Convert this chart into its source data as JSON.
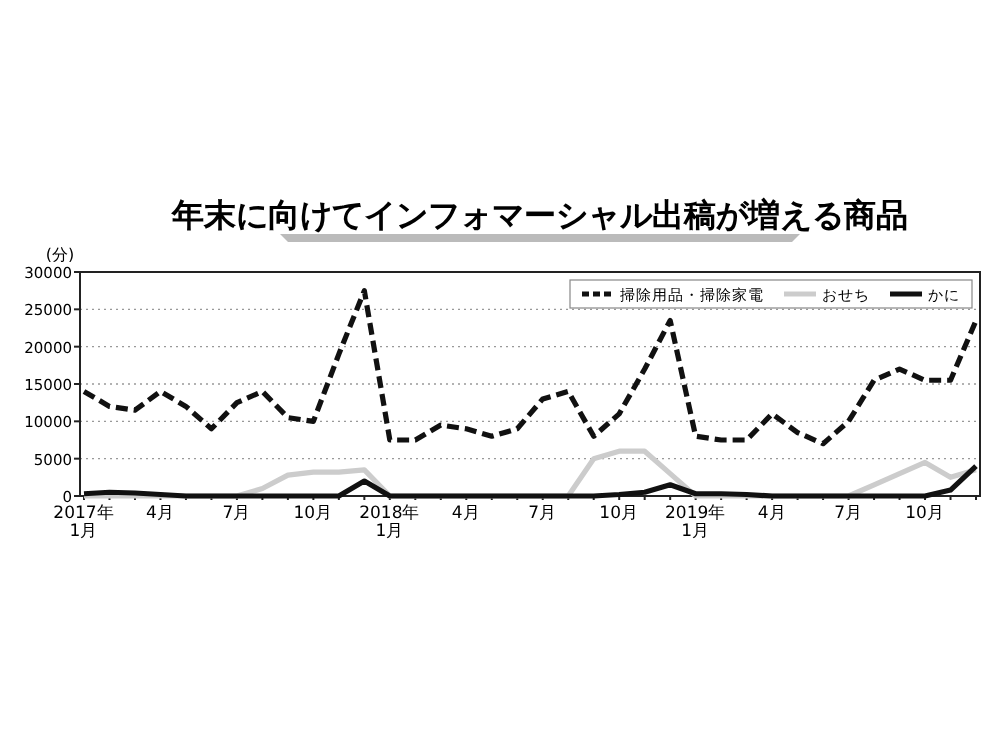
{
  "chart_data": {
    "type": "line",
    "title": "年末に向けてインフォマーシャル出稿が増える商品",
    "ylabel": "(分)",
    "categories": [
      "2017年\n1月",
      null,
      null,
      "4月",
      null,
      null,
      "7月",
      null,
      null,
      "10月",
      null,
      null,
      "2018年\n1月",
      null,
      null,
      "4月",
      null,
      null,
      "7月",
      null,
      null,
      "10月",
      null,
      null,
      "2019年\n1月",
      null,
      null,
      "4月",
      null,
      null,
      "7月",
      null,
      null,
      "10月",
      null,
      null
    ],
    "series": [
      {
        "name": "掃除用品・掃除家電",
        "color": "#111111",
        "line_style": "dashed",
        "values": [
          14000,
          12000,
          11500,
          14000,
          12000,
          9000,
          12500,
          14000,
          10500,
          10000,
          19000,
          27500,
          7500,
          7500,
          9500,
          9000,
          8000,
          9000,
          13000,
          14000,
          8000,
          11000,
          17000,
          23500,
          8000,
          7500,
          7500,
          11000,
          8500,
          7000,
          10000,
          15500,
          17000,
          15500,
          15500,
          23500
        ]
      },
      {
        "name": "おせち",
        "color": "#cccccc",
        "line_style": "solid",
        "values": [
          0,
          0,
          0,
          0,
          0,
          0,
          0,
          1000,
          2800,
          3200,
          3200,
          3500,
          0,
          0,
          0,
          0,
          0,
          0,
          0,
          0,
          5000,
          6000,
          6000,
          3000,
          0,
          0,
          0,
          0,
          0,
          0,
          0,
          1500,
          3000,
          4500,
          2500,
          3500
        ]
      },
      {
        "name": "かに",
        "color": "#111111",
        "line_style": "solid",
        "values": [
          300,
          500,
          400,
          200,
          0,
          0,
          0,
          0,
          0,
          0,
          0,
          2000,
          0,
          0,
          0,
          0,
          0,
          0,
          0,
          0,
          0,
          200,
          500,
          1500,
          300,
          300,
          200,
          0,
          0,
          0,
          0,
          0,
          0,
          0,
          800,
          4000
        ]
      }
    ],
    "ylim": [
      0,
      30000
    ],
    "yticks": [
      0,
      5000,
      10000,
      15000,
      20000,
      25000,
      30000
    ],
    "grid": "y",
    "legend": "top right",
    "marker": "none"
  }
}
